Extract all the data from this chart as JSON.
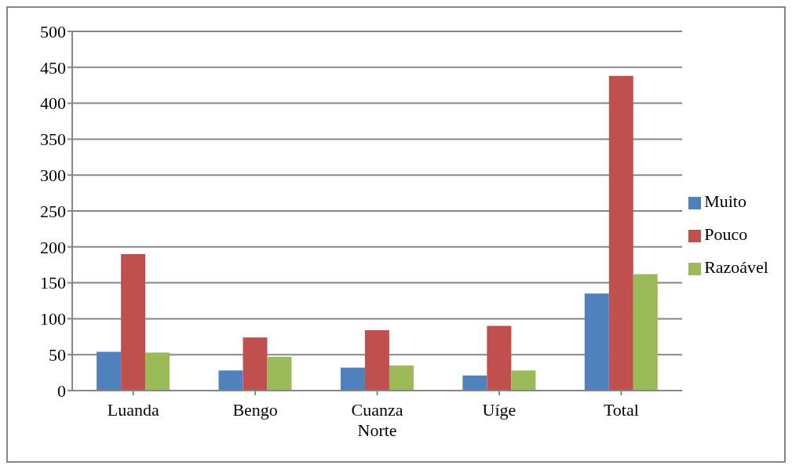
{
  "chart_data": {
    "type": "bar",
    "categories": [
      "Luanda",
      "Bengo",
      "Cuanza Norte",
      "Uíge",
      "Total"
    ],
    "series": [
      {
        "name": "Muito",
        "color": "#4f81bd",
        "values": [
          54,
          28,
          32,
          21,
          135
        ]
      },
      {
        "name": "Pouco",
        "color": "#c0504d",
        "values": [
          190,
          74,
          84,
          90,
          438
        ]
      },
      {
        "name": "Razoável",
        "color": "#9bbb59",
        "values": [
          53,
          47,
          35,
          28,
          162
        ]
      }
    ],
    "ylim": [
      0,
      500
    ],
    "yticks": [
      0,
      50,
      100,
      150,
      200,
      250,
      300,
      350,
      400,
      450,
      500
    ],
    "grid": "y",
    "legend": "right"
  }
}
